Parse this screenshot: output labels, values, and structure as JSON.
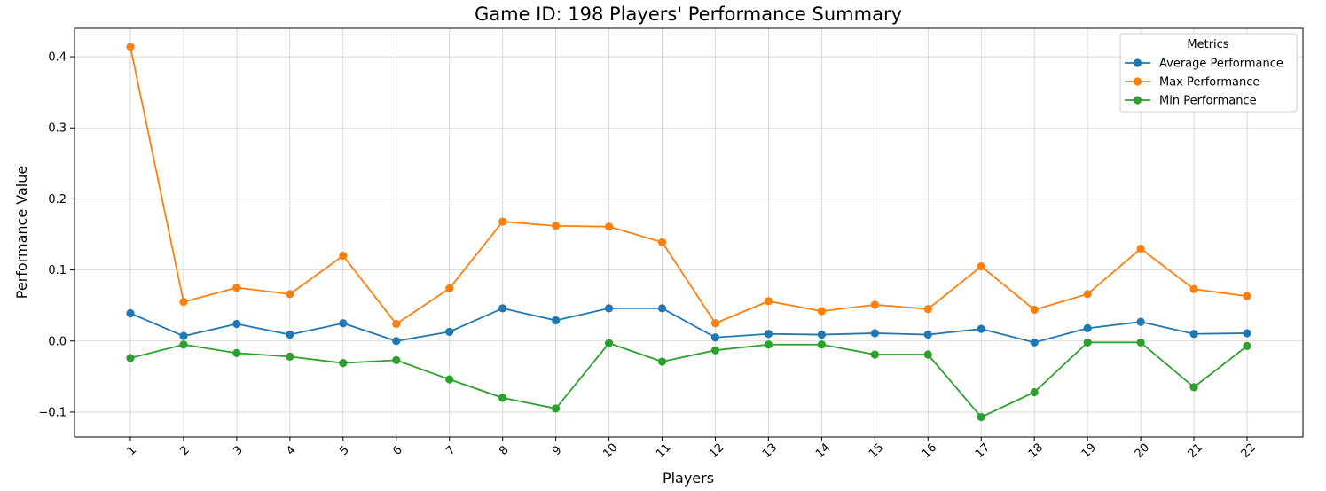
{
  "chart_data": {
    "type": "line",
    "title": "Game ID: 198 Players' Performance Summary",
    "xlabel": "Players",
    "ylabel": "Performance Value",
    "categories": [
      "1",
      "2",
      "3",
      "4",
      "5",
      "6",
      "7",
      "8",
      "9",
      "10",
      "11",
      "12",
      "13",
      "14",
      "15",
      "16",
      "17",
      "18",
      "19",
      "20",
      "21",
      "22"
    ],
    "ylim": [
      -0.135,
      0.44
    ],
    "yticks": [
      -0.1,
      0.0,
      0.1,
      0.2,
      0.3,
      0.4
    ],
    "ytick_labels": [
      "−0.1",
      "0.0",
      "0.1",
      "0.2",
      "0.3",
      "0.4"
    ],
    "grid": true,
    "legend": {
      "title": "Metrics",
      "placement": "top-right"
    },
    "series": [
      {
        "name": "Average Performance",
        "color": "#1f77b4",
        "values": [
          0.039,
          0.007,
          0.024,
          0.009,
          0.025,
          0.0,
          0.013,
          0.046,
          0.029,
          0.046,
          0.046,
          0.005,
          0.01,
          0.009,
          0.011,
          0.009,
          0.017,
          -0.002,
          0.018,
          0.027,
          0.01,
          0.011
        ]
      },
      {
        "name": "Max Performance",
        "color": "#ff7f0e",
        "values": [
          0.414,
          0.055,
          0.075,
          0.066,
          0.12,
          0.024,
          0.074,
          0.168,
          0.162,
          0.161,
          0.139,
          0.025,
          0.056,
          0.042,
          0.051,
          0.045,
          0.105,
          0.044,
          0.066,
          0.13,
          0.073,
          0.063
        ]
      },
      {
        "name": "Min Performance",
        "color": "#2ca02c",
        "values": [
          -0.024,
          -0.005,
          -0.017,
          -0.022,
          -0.031,
          -0.027,
          -0.054,
          -0.08,
          -0.095,
          -0.003,
          -0.029,
          -0.013,
          -0.005,
          -0.005,
          -0.019,
          -0.019,
          -0.107,
          -0.072,
          -0.002,
          -0.002,
          -0.065,
          -0.007
        ]
      }
    ]
  }
}
